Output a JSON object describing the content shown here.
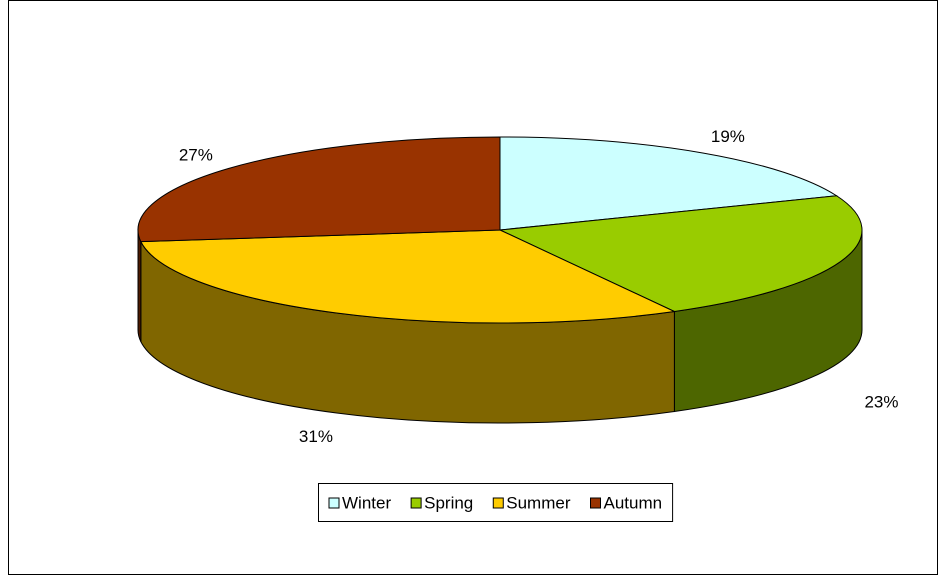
{
  "chart_data": {
    "type": "pie3d",
    "categories": [
      "Winter",
      "Spring",
      "Summer",
      "Autumn"
    ],
    "values": [
      19,
      23,
      31,
      27
    ],
    "value_labels": [
      "19%",
      "23%",
      "31%",
      "27%"
    ],
    "colors": [
      "#ccffff",
      "#99cc00",
      "#ffcc00",
      "#993300"
    ],
    "legend": "bottom"
  }
}
